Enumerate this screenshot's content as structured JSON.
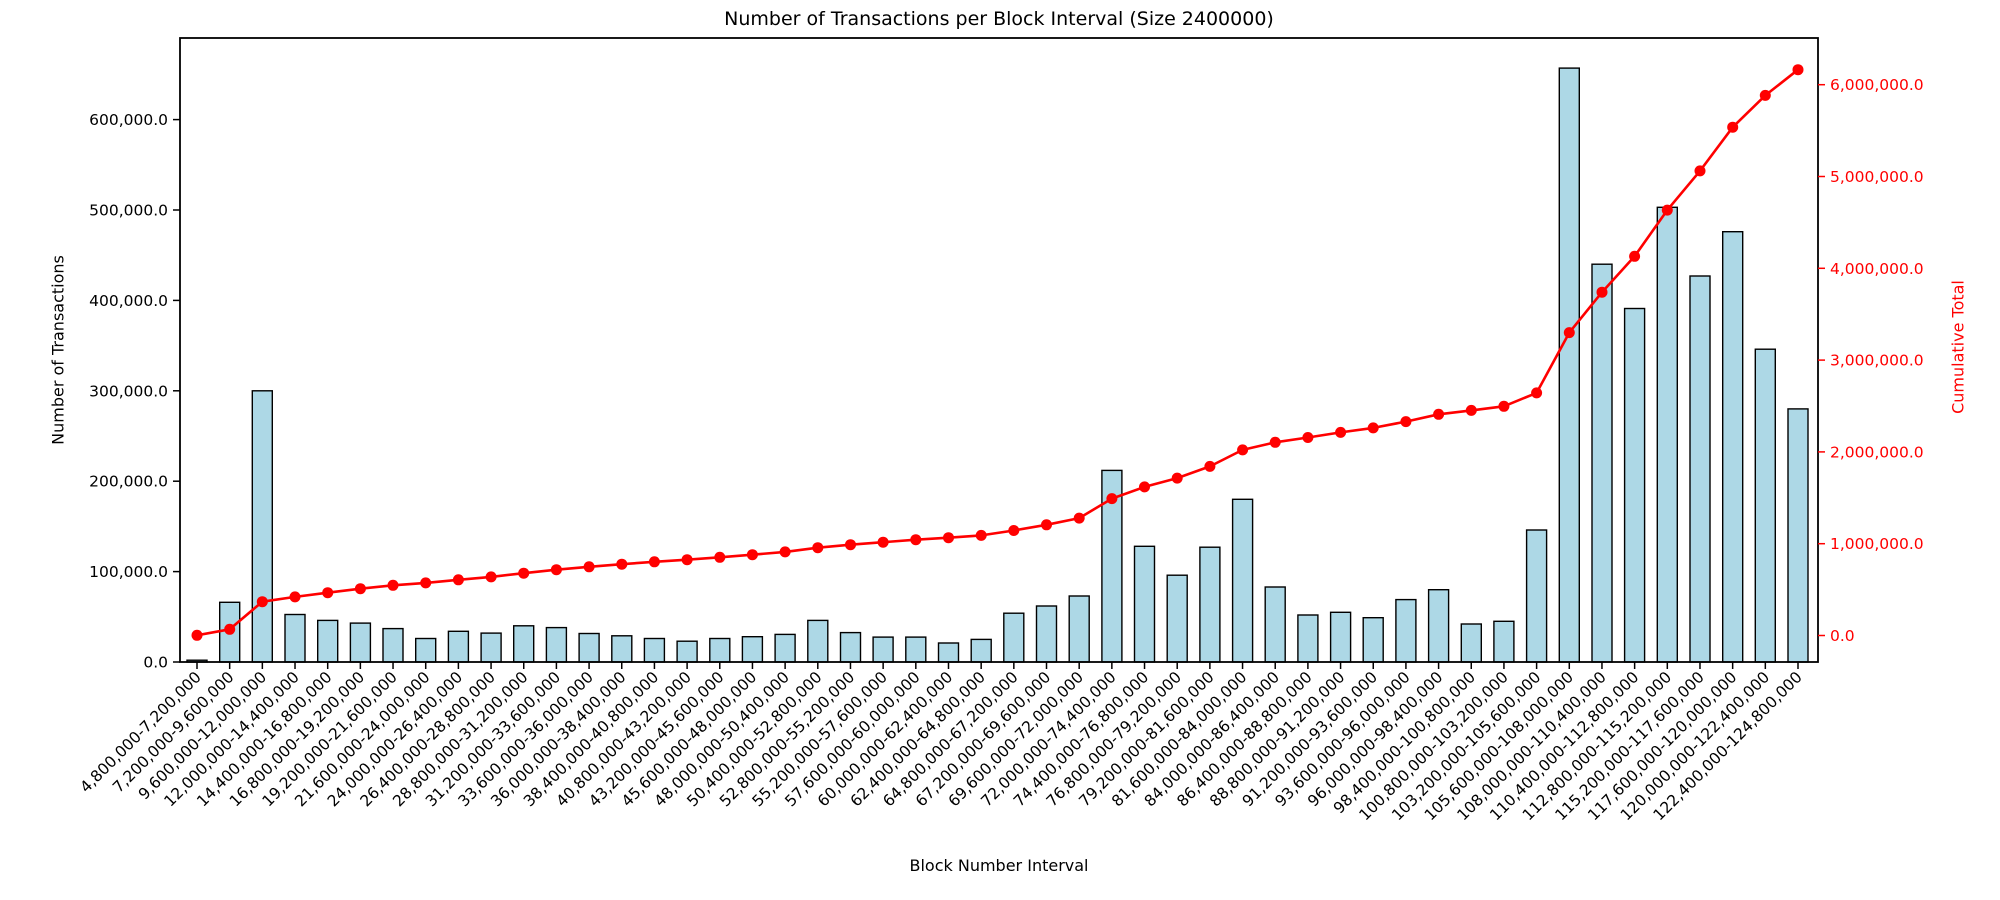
{
  "chart_data": {
    "type": "bar",
    "title": "Number of Transactions per Block Interval (Size 2400000)",
    "xlabel": "Block Number Interval",
    "ylabel_left": "Number of Transactions",
    "ylabel_right": "Cumulative Total",
    "grid": false,
    "legend": "none",
    "left_ylim": [
      0,
      691000
    ],
    "right_ylim": [
      -290000,
      6500000
    ],
    "left_axis_ticks": [
      "0.0",
      "100,000.0",
      "200,000.0",
      "300,000.0",
      "400,000.0",
      "500,000.0",
      "600,000.0"
    ],
    "right_axis_ticks": [
      "0.0",
      "1,000,000.0",
      "2,000,000.0",
      "3,000,000.0",
      "4,000,000.0",
      "5,000,000.0",
      "6,000,000.0"
    ],
    "categories": [
      "4,800,000-7,200,000",
      "7,200,000-9,600,000",
      "9,600,000-12,000,000",
      "12,000,000-14,400,000",
      "14,400,000-16,800,000",
      "16,800,000-19,200,000",
      "19,200,000-21,600,000",
      "21,600,000-24,000,000",
      "24,000,000-26,400,000",
      "26,400,000-28,800,000",
      "28,800,000-31,200,000",
      "31,200,000-33,600,000",
      "33,600,000-36,000,000",
      "36,000,000-38,400,000",
      "38,400,000-40,800,000",
      "40,800,000-43,200,000",
      "43,200,000-45,600,000",
      "45,600,000-48,000,000",
      "48,000,000-50,400,000",
      "50,400,000-52,800,000",
      "52,800,000-55,200,000",
      "55,200,000-57,600,000",
      "57,600,000-60,000,000",
      "60,000,000-62,400,000",
      "62,400,000-64,800,000",
      "64,800,000-67,200,000",
      "67,200,000-69,600,000",
      "69,600,000-72,000,000",
      "72,000,000-74,400,000",
      "74,400,000-76,800,000",
      "76,800,000-79,200,000",
      "79,200,000-81,600,000",
      "81,600,000-84,000,000",
      "84,000,000-86,400,000",
      "86,400,000-88,800,000",
      "88,800,000-91,200,000",
      "91,200,000-93,600,000",
      "93,600,000-96,000,000",
      "96,000,000-98,400,000",
      "98,400,000-100,800,000",
      "100,800,000-103,200,000",
      "103,200,000-105,600,000",
      "105,600,000-108,000,000",
      "108,000,000-110,400,000",
      "110,400,000-112,800,000",
      "112,800,000-115,200,000",
      "115,200,000-117,600,000",
      "117,600,000-120,000,000",
      "120,000,000-122,400,000",
      "122,400,000-124,800,000"
    ],
    "series": [
      {
        "name": "Number of Transactions",
        "type": "bar",
        "axis": "left",
        "values": [
          2000,
          66000,
          300000,
          52500,
          46000,
          43000,
          37000,
          26000,
          34000,
          32000,
          40000,
          38000,
          31500,
          29000,
          26000,
          23000,
          26000,
          28000,
          30500,
          46000,
          32500,
          27500,
          27500,
          21000,
          25000,
          54000,
          62000,
          73000,
          212000,
          128000,
          96000,
          127000,
          180000,
          83000,
          52000,
          55000,
          49000,
          69000,
          80000,
          42000,
          45000,
          146000,
          657000,
          440000,
          391000,
          503000,
          427000,
          476000,
          346000,
          280000
        ]
      },
      {
        "name": "Cumulative Total",
        "type": "line",
        "axis": "right",
        "marker": "circle",
        "values": [
          2000,
          68000,
          368000,
          420500,
          466500,
          509500,
          546500,
          572500,
          606500,
          638500,
          678500,
          716500,
          748000,
          777000,
          803000,
          826000,
          852000,
          880000,
          910500,
          956500,
          989000,
          1016500,
          1044000,
          1065000,
          1090000,
          1144000,
          1206000,
          1279000,
          1491000,
          1619000,
          1715000,
          1842000,
          2022000,
          2105000,
          2157000,
          2212000,
          2261000,
          2330000,
          2410000,
          2452000,
          2497000,
          2643000,
          3300000,
          3740000,
          4131000,
          4634000,
          5061000,
          5537000,
          5883000,
          6163000
        ]
      }
    ],
    "colors": {
      "bar_fill": "#ADD8E6",
      "bar_edge": "#000000",
      "line": "#FF0000",
      "right_axis_text": "#FF0000",
      "left_axis_text": "#000000",
      "spine": "#000000"
    }
  }
}
